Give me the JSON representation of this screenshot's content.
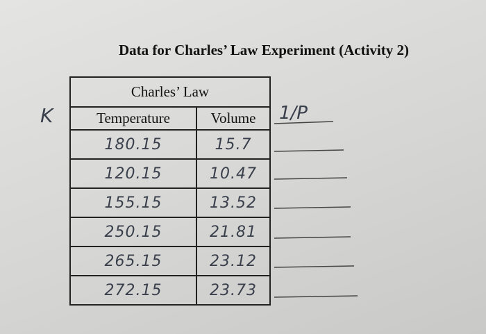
{
  "header": {
    "title": "Data for Charles’ Law Experiment (Activity 2)"
  },
  "table": {
    "caption": "Charles’ Law",
    "columns": [
      "Temperature",
      "Volume"
    ],
    "rows": [
      [
        "180.15",
        "15.7"
      ],
      [
        "120.15",
        "10.47"
      ],
      [
        "155.15",
        "13.52"
      ],
      [
        "250.15",
        "21.81"
      ],
      [
        "265.15",
        "23.12"
      ],
      [
        "272.15",
        "23.73"
      ]
    ]
  },
  "annotations": {
    "left": "K",
    "right": "1/P"
  }
}
